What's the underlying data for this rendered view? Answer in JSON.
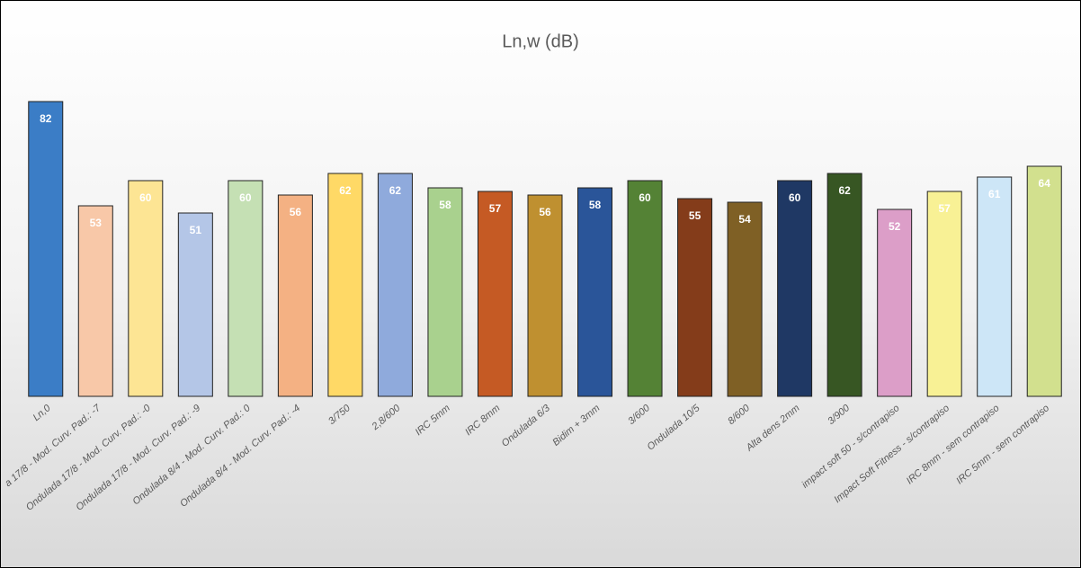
{
  "chart_data": {
    "type": "bar",
    "title": "Ln,w (dB)",
    "categories": [
      "Ln,0",
      "a 17/8 - Mod. Curv. Pad.: -7",
      "Ondulada 17/8 - Mod. Curv. Pad.: -0",
      "Ondulada 17/8 - Mod. Curv. Pad.: -9",
      "Ondulada 8/4 - Mod. Curv. Pad.: 0",
      "Ondulada 8/4 - Mod. Curv. Pad.: -4",
      "3/750",
      "2,8/600",
      "IRC 5mm",
      "IRC 8mm",
      "Ondulada 6/3",
      "Bidim + 3mm",
      "3/600",
      "Ondulada 10/5",
      "8/600",
      "Alta dens 2mm",
      "3/900",
      "impact soft 50 - s/contrapiso",
      "Impact Soft Fitness - s/contrapiso",
      "IRC 8mm - sem contrapiso",
      "IRC 5mm - sem contrapiso"
    ],
    "values": [
      82,
      53,
      60,
      51,
      60,
      56,
      62,
      62,
      58,
      57,
      56,
      58,
      60,
      55,
      54,
      60,
      62,
      52,
      57,
      61,
      64
    ],
    "colors": [
      "#3b7dc6",
      "#f8c8a8",
      "#fde594",
      "#b4c6e7",
      "#c5e0b4",
      "#f4b183",
      "#ffd966",
      "#8faadc",
      "#a9d18e",
      "#c55a24",
      "#bf9030",
      "#2a5599",
      "#548235",
      "#843c1a",
      "#7f6025",
      "#1f3864",
      "#375623",
      "#dc9ec8",
      "#f8f195",
      "#cde6f7",
      "#d2e08e"
    ],
    "ylim": [
      0,
      90
    ]
  }
}
